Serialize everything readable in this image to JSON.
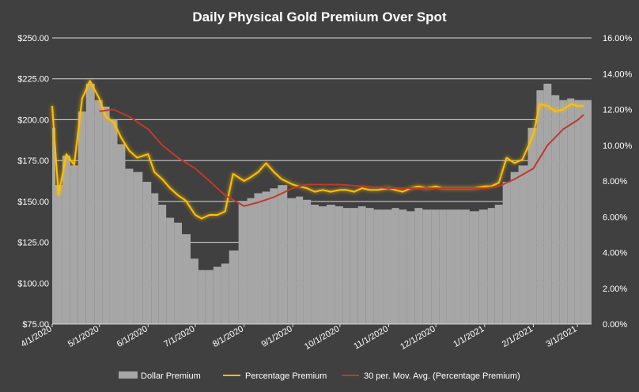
{
  "chart_data": {
    "type": "bar",
    "title": "Daily Physical Gold Premium Over Spot",
    "x_ticks": [
      "4/1/2020",
      "5/1/2020",
      "6/1/2020",
      "7/1/2020",
      "8/1/2020",
      "9/1/2020",
      "10/1/2020",
      "11/1/2020",
      "12/1/2020",
      "1/1/2021",
      "2/1/2021",
      "3/1/2021"
    ],
    "y_left": {
      "range": [
        75,
        250
      ],
      "ticks": [
        "$75.00",
        "$100.00",
        "$125.00",
        "$150.00",
        "$175.00",
        "$200.00",
        "$225.00",
        "$250.00"
      ]
    },
    "y_right": {
      "range": [
        0,
        16
      ],
      "ticks": [
        "0.00%",
        "2.00%",
        "4.00%",
        "6.00%",
        "8.00%",
        "10.00%",
        "12.00%",
        "14.00%",
        "16.00%"
      ]
    },
    "grid": "horizontal",
    "legend_position": "bottom",
    "series": [
      {
        "name": "Dollar Premium",
        "type": "bar",
        "axis": "left",
        "color": "#a6a6a6",
        "x": [
          "2020-04-01",
          "2020-04-05",
          "2020-04-10",
          "2020-04-15",
          "2020-04-20",
          "2020-04-25",
          "2020-05-01",
          "2020-05-05",
          "2020-05-10",
          "2020-05-15",
          "2020-05-20",
          "2020-05-25",
          "2020-06-01",
          "2020-06-05",
          "2020-06-10",
          "2020-06-15",
          "2020-06-20",
          "2020-06-25",
          "2020-07-01",
          "2020-07-05",
          "2020-07-10",
          "2020-07-15",
          "2020-07-20",
          "2020-07-25",
          "2020-08-01",
          "2020-08-05",
          "2020-08-10",
          "2020-08-15",
          "2020-08-20",
          "2020-08-25",
          "2020-09-01",
          "2020-09-05",
          "2020-09-10",
          "2020-09-15",
          "2020-09-20",
          "2020-09-25",
          "2020-10-01",
          "2020-10-05",
          "2020-10-10",
          "2020-10-15",
          "2020-10-20",
          "2020-10-25",
          "2020-11-01",
          "2020-11-05",
          "2020-11-10",
          "2020-11-15",
          "2020-11-20",
          "2020-11-25",
          "2020-12-01",
          "2020-12-05",
          "2020-12-10",
          "2020-12-15",
          "2020-12-20",
          "2020-12-25",
          "2021-01-01",
          "2021-01-05",
          "2021-01-10",
          "2021-01-15",
          "2021-01-20",
          "2021-01-25",
          "2021-02-01",
          "2021-02-05",
          "2021-02-10",
          "2021-02-15",
          "2021-02-20",
          "2021-02-25",
          "2021-03-01",
          "2021-03-05"
        ],
        "values": [
          195,
          160,
          178,
          172,
          205,
          222,
          212,
          208,
          200,
          185,
          170,
          168,
          162,
          155,
          148,
          140,
          137,
          130,
          115,
          108,
          108,
          110,
          112,
          120,
          150,
          152,
          155,
          156,
          158,
          160,
          152,
          153,
          151,
          148,
          147,
          148,
          147,
          146,
          146,
          147,
          146,
          145,
          145,
          146,
          145,
          144,
          146,
          145,
          145,
          145,
          145,
          145,
          145,
          144,
          145,
          146,
          148,
          162,
          168,
          172,
          195,
          218,
          222,
          215,
          212,
          213,
          212,
          212
        ]
      },
      {
        "name": "Percentage Premium",
        "type": "line",
        "axis": "right",
        "color": "#ffc000",
        "x": [
          "2020-04-01",
          "2020-04-05",
          "2020-04-10",
          "2020-04-15",
          "2020-04-20",
          "2020-04-25",
          "2020-05-01",
          "2020-05-05",
          "2020-05-10",
          "2020-05-15",
          "2020-05-20",
          "2020-05-25",
          "2020-06-01",
          "2020-06-05",
          "2020-06-10",
          "2020-06-15",
          "2020-06-20",
          "2020-06-25",
          "2020-07-01",
          "2020-07-05",
          "2020-07-10",
          "2020-07-15",
          "2020-07-20",
          "2020-07-25",
          "2020-08-01",
          "2020-08-05",
          "2020-08-10",
          "2020-08-15",
          "2020-08-20",
          "2020-08-25",
          "2020-09-01",
          "2020-09-05",
          "2020-09-10",
          "2020-09-15",
          "2020-09-20",
          "2020-09-25",
          "2020-10-01",
          "2020-10-05",
          "2020-10-10",
          "2020-10-15",
          "2020-10-20",
          "2020-10-25",
          "2020-11-01",
          "2020-11-05",
          "2020-11-10",
          "2020-11-15",
          "2020-11-20",
          "2020-11-25",
          "2020-12-01",
          "2020-12-05",
          "2020-12-10",
          "2020-12-15",
          "2020-12-20",
          "2020-12-25",
          "2021-01-01",
          "2021-01-05",
          "2021-01-10",
          "2021-01-15",
          "2021-01-20",
          "2021-01-25",
          "2021-02-01",
          "2021-02-05",
          "2021-02-10",
          "2021-02-15",
          "2021-02-20",
          "2021-02-25",
          "2021-03-01",
          "2021-03-05"
        ],
        "values": [
          12.2,
          7.2,
          9.5,
          8.9,
          12.6,
          13.6,
          12.6,
          11.6,
          11.3,
          10.4,
          9.7,
          9.3,
          9.5,
          8.5,
          8.1,
          7.6,
          7.2,
          6.9,
          6.1,
          5.9,
          6.1,
          6.1,
          6.3,
          8.4,
          8.0,
          8.2,
          8.5,
          9.0,
          8.5,
          8.1,
          7.8,
          7.7,
          7.6,
          7.4,
          7.5,
          7.4,
          7.5,
          7.5,
          7.4,
          7.6,
          7.5,
          7.5,
          7.6,
          7.5,
          7.4,
          7.6,
          7.7,
          7.6,
          7.7,
          7.6,
          7.6,
          7.6,
          7.6,
          7.6,
          7.7,
          7.7,
          7.9,
          9.3,
          9.0,
          9.2,
          10.6,
          12.3,
          12.2,
          11.9,
          12.0,
          12.3,
          12.2,
          12.2
        ]
      },
      {
        "name": "30 per. Mov. Avg. (Percentage Premium)",
        "type": "line",
        "axis": "right",
        "color": "#c0392b",
        "x": [
          "2020-05-01",
          "2020-05-10",
          "2020-05-20",
          "2020-06-01",
          "2020-06-10",
          "2020-06-20",
          "2020-07-01",
          "2020-07-10",
          "2020-07-20",
          "2020-08-01",
          "2020-08-10",
          "2020-08-20",
          "2020-09-01",
          "2020-09-10",
          "2020-09-20",
          "2020-10-01",
          "2020-10-15",
          "2020-11-01",
          "2020-11-15",
          "2020-12-01",
          "2020-12-15",
          "2021-01-01",
          "2021-01-10",
          "2021-01-20",
          "2021-02-01",
          "2021-02-10",
          "2021-02-20",
          "2021-03-01",
          "2021-03-05"
        ],
        "values": [
          11.9,
          12.0,
          11.6,
          10.9,
          10.0,
          9.3,
          8.7,
          8.0,
          7.2,
          6.6,
          6.8,
          7.1,
          7.6,
          7.8,
          7.8,
          7.8,
          7.7,
          7.6,
          7.6,
          7.6,
          7.6,
          7.6,
          7.7,
          8.1,
          8.7,
          10.0,
          10.9,
          11.4,
          11.7
        ]
      }
    ]
  }
}
